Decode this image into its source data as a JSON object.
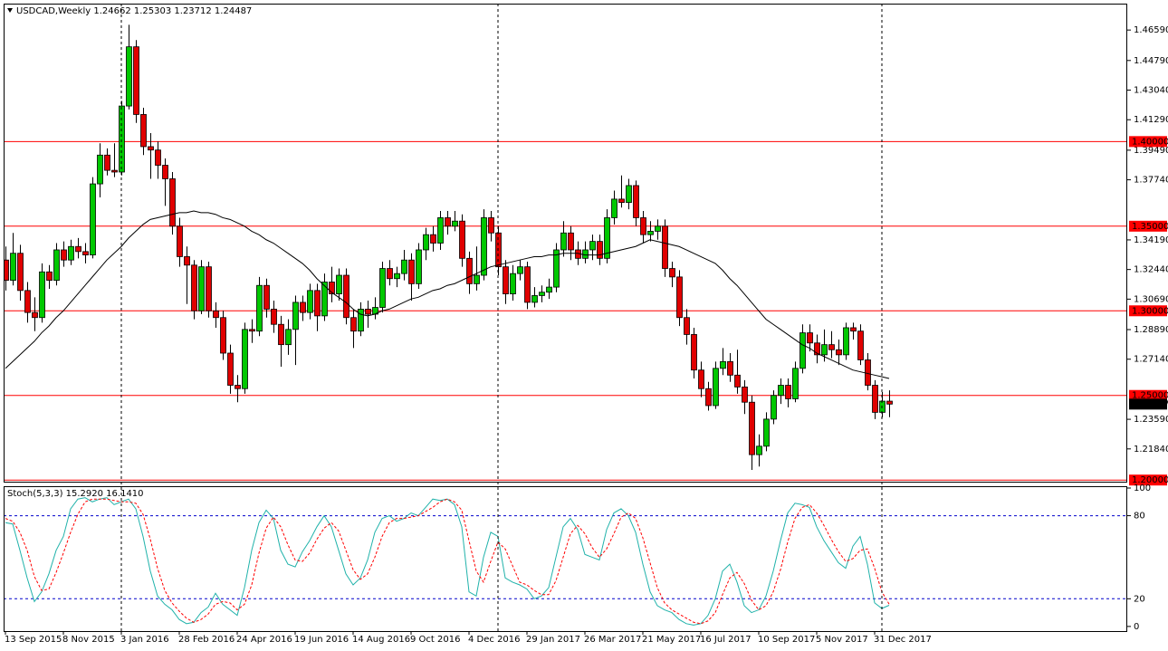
{
  "chart_data": [
    {
      "type": "candlestick",
      "title": "USDCAD,Weekly  1.24662 1.25303 1.23712 1.24487",
      "categories": [
        "13 Sep 2015",
        null,
        null,
        null,
        null,
        null,
        null,
        null,
        "8 Nov 2015",
        null,
        null,
        null,
        null,
        null,
        null,
        null,
        "3 Jan 2016",
        null,
        null,
        null,
        null,
        null,
        null,
        null,
        "28 Feb 2016",
        null,
        null,
        null,
        null,
        null,
        null,
        null,
        "24 Apr 2016",
        null,
        null,
        null,
        null,
        null,
        null,
        null,
        "19 Jun 2016",
        null,
        null,
        null,
        null,
        null,
        null,
        null,
        "14 Aug 2016",
        null,
        null,
        null,
        null,
        null,
        null,
        null,
        "9 Oct 2016",
        null,
        null,
        null,
        null,
        null,
        null,
        null,
        "4 Dec 2016",
        null,
        null,
        null,
        null,
        null,
        null,
        null,
        "29 Jan 2017",
        null,
        null,
        null,
        null,
        null,
        null,
        null,
        "26 Mar 2017",
        null,
        null,
        null,
        null,
        null,
        null,
        null,
        "21 May 2017",
        null,
        null,
        null,
        null,
        null,
        null,
        null,
        "16 Jul 2017",
        null,
        null,
        null,
        null,
        null,
        null,
        null,
        "10 Sep 2017",
        null,
        null,
        null,
        null,
        null,
        null,
        null,
        "5 Nov 2017",
        null,
        null,
        null,
        null,
        null,
        null,
        null,
        "31 Dec 2017",
        null,
        null
      ],
      "open": [
        1.33,
        1.318,
        1.334,
        1.312,
        1.299,
        1.296,
        1.323,
        1.318,
        1.336,
        1.33,
        1.338,
        1.335,
        1.333,
        1.375,
        1.392,
        1.383,
        1.382,
        1.421,
        1.456,
        1.416,
        1.397,
        1.395,
        1.386,
        1.378,
        1.35,
        1.332,
        1.327,
        1.3,
        1.326,
        1.3,
        1.296,
        1.275,
        1.256,
        1.254,
        1.289,
        1.288,
        1.315,
        1.301,
        1.292,
        1.28,
        1.289,
        1.305,
        1.299,
        1.312,
        1.297,
        1.317,
        1.31,
        1.321,
        1.296,
        1.288,
        1.301,
        1.298,
        1.302,
        1.325,
        1.319,
        1.322,
        1.33,
        1.316,
        1.336,
        1.345,
        1.34,
        1.355,
        1.35,
        1.353,
        1.331,
        1.316,
        1.321,
        1.355,
        1.346,
        1.326,
        1.31,
        1.322,
        1.326,
        1.305,
        1.309,
        1.311,
        1.314,
        1.336,
        1.346,
        1.336,
        1.331,
        1.336,
        1.341,
        1.331,
        1.355,
        1.366,
        1.364,
        1.374,
        1.355,
        1.345,
        1.347,
        1.35,
        1.325,
        1.32,
        1.296,
        1.286,
        1.265,
        1.254,
        1.244,
        1.266,
        1.27,
        1.262,
        1.255,
        1.246,
        1.215,
        1.22,
        1.236,
        1.25,
        1.256,
        1.248,
        1.266,
        1.287,
        1.281,
        1.274,
        1.28,
        1.277,
        1.274,
        1.29,
        1.288,
        1.271,
        1.256,
        1.24,
        1.24662
      ],
      "high": [
        1.338,
        1.346,
        1.339,
        1.317,
        1.308,
        1.328,
        1.327,
        1.34,
        1.341,
        1.342,
        1.343,
        1.34,
        1.379,
        1.399,
        1.396,
        1.399,
        1.424,
        1.469,
        1.46,
        1.42,
        1.405,
        1.4,
        1.39,
        1.382,
        1.355,
        1.338,
        1.33,
        1.33,
        1.329,
        1.305,
        1.3,
        1.28,
        1.262,
        1.293,
        1.295,
        1.32,
        1.319,
        1.306,
        1.297,
        1.295,
        1.309,
        1.309,
        1.316,
        1.316,
        1.322,
        1.326,
        1.325,
        1.325,
        1.301,
        1.305,
        1.306,
        1.308,
        1.329,
        1.33,
        1.326,
        1.336,
        1.334,
        1.34,
        1.349,
        1.35,
        1.359,
        1.359,
        1.359,
        1.357,
        1.335,
        1.338,
        1.36,
        1.359,
        1.35,
        1.33,
        1.327,
        1.33,
        1.329,
        1.314,
        1.315,
        1.319,
        1.34,
        1.353,
        1.35,
        1.341,
        1.341,
        1.345,
        1.345,
        1.36,
        1.371,
        1.38,
        1.378,
        1.377,
        1.359,
        1.353,
        1.354,
        1.354,
        1.329,
        1.324,
        1.301,
        1.29,
        1.27,
        1.258,
        1.27,
        1.278,
        1.275,
        1.277,
        1.259,
        1.25,
        1.227,
        1.24,
        1.253,
        1.26,
        1.26,
        1.27,
        1.292,
        1.292,
        1.286,
        1.289,
        1.288,
        1.283,
        1.293,
        1.293,
        1.292,
        1.275,
        1.259,
        1.252,
        1.25303
      ],
      "low": [
        1.312,
        1.315,
        1.306,
        1.293,
        1.288,
        1.293,
        1.313,
        1.315,
        1.326,
        1.327,
        1.331,
        1.328,
        1.331,
        1.367,
        1.38,
        1.379,
        1.38,
        1.419,
        1.411,
        1.392,
        1.378,
        1.378,
        1.362,
        1.345,
        1.326,
        1.304,
        1.295,
        1.298,
        1.296,
        1.29,
        1.271,
        1.251,
        1.246,
        1.251,
        1.281,
        1.285,
        1.296,
        1.287,
        1.267,
        1.274,
        1.268,
        1.294,
        1.295,
        1.288,
        1.294,
        1.305,
        1.306,
        1.292,
        1.278,
        1.285,
        1.29,
        1.295,
        1.299,
        1.315,
        1.314,
        1.318,
        1.306,
        1.313,
        1.33,
        1.335,
        1.336,
        1.345,
        1.347,
        1.326,
        1.31,
        1.312,
        1.318,
        1.341,
        1.321,
        1.304,
        1.306,
        1.318,
        1.301,
        1.302,
        1.305,
        1.307,
        1.311,
        1.332,
        1.33,
        1.327,
        1.328,
        1.33,
        1.327,
        1.328,
        1.351,
        1.361,
        1.36,
        1.35,
        1.34,
        1.341,
        1.342,
        1.32,
        1.314,
        1.291,
        1.28,
        1.26,
        1.249,
        1.241,
        1.242,
        1.262,
        1.258,
        1.251,
        1.239,
        1.206,
        1.208,
        1.217,
        1.233,
        1.245,
        1.243,
        1.246,
        1.263,
        1.276,
        1.269,
        1.27,
        1.272,
        1.268,
        1.271,
        1.283,
        1.268,
        1.253,
        1.236,
        1.237,
        1.23712
      ],
      "close": [
        1.318,
        1.334,
        1.312,
        1.299,
        1.296,
        1.323,
        1.318,
        1.336,
        1.33,
        1.338,
        1.335,
        1.333,
        1.375,
        1.392,
        1.383,
        1.382,
        1.421,
        1.456,
        1.416,
        1.397,
        1.395,
        1.386,
        1.378,
        1.35,
        1.332,
        1.327,
        1.3,
        1.326,
        1.3,
        1.296,
        1.275,
        1.256,
        1.254,
        1.289,
        1.288,
        1.315,
        1.301,
        1.292,
        1.28,
        1.289,
        1.305,
        1.299,
        1.312,
        1.297,
        1.317,
        1.31,
        1.321,
        1.296,
        1.288,
        1.301,
        1.298,
        1.302,
        1.325,
        1.319,
        1.322,
        1.33,
        1.316,
        1.336,
        1.345,
        1.34,
        1.355,
        1.35,
        1.353,
        1.331,
        1.316,
        1.321,
        1.355,
        1.346,
        1.326,
        1.31,
        1.322,
        1.326,
        1.305,
        1.309,
        1.311,
        1.314,
        1.336,
        1.346,
        1.336,
        1.331,
        1.336,
        1.341,
        1.331,
        1.355,
        1.366,
        1.364,
        1.374,
        1.355,
        1.345,
        1.347,
        1.35,
        1.325,
        1.32,
        1.296,
        1.286,
        1.265,
        1.254,
        1.244,
        1.266,
        1.27,
        1.262,
        1.255,
        1.246,
        1.215,
        1.22,
        1.236,
        1.25,
        1.256,
        1.248,
        1.266,
        1.287,
        1.281,
        1.274,
        1.28,
        1.277,
        1.274,
        1.29,
        1.288,
        1.271,
        1.256,
        1.24,
        1.24662,
        1.24487
      ],
      "up_color": "#00c800",
      "down_color": "#e00000",
      "overlay": {
        "color": "#000000",
        "values": [
          1.266,
          1.27,
          1.274,
          1.278,
          1.282,
          1.287,
          1.291,
          1.296,
          1.3,
          1.305,
          1.31,
          1.315,
          1.32,
          1.325,
          1.33,
          1.334,
          1.338,
          1.343,
          1.347,
          1.351,
          1.354,
          1.355,
          1.356,
          1.357,
          1.358,
          1.358,
          1.359,
          1.358,
          1.358,
          1.357,
          1.355,
          1.354,
          1.352,
          1.35,
          1.347,
          1.345,
          1.342,
          1.34,
          1.337,
          1.334,
          1.331,
          1.328,
          1.324,
          1.319,
          1.315,
          1.311,
          1.308,
          1.305,
          1.301,
          1.298,
          1.297,
          1.298,
          1.3,
          1.301,
          1.303,
          1.305,
          1.307,
          1.308,
          1.31,
          1.312,
          1.313,
          1.315,
          1.316,
          1.318,
          1.32,
          1.322,
          1.324,
          1.326,
          1.327,
          1.328,
          1.329,
          1.33,
          1.331,
          1.332,
          1.332,
          1.333,
          1.333,
          1.334,
          1.334,
          1.334,
          1.333,
          1.333,
          1.333,
          1.334,
          1.335,
          1.336,
          1.337,
          1.338,
          1.34,
          1.342,
          1.341,
          1.34,
          1.339,
          1.338,
          1.336,
          1.334,
          1.332,
          1.33,
          1.328,
          1.324,
          1.319,
          1.315,
          1.31,
          1.305,
          1.3,
          1.295,
          1.292,
          1.289,
          1.286,
          1.283,
          1.28,
          1.278,
          1.275,
          1.273,
          1.271,
          1.269,
          1.267,
          1.265,
          1.264,
          1.263,
          1.262,
          1.261,
          1.26
        ]
      },
      "levels": [
        {
          "value": 1.4,
          "label": "1.40000"
        },
        {
          "value": 1.35,
          "label": "1.35000"
        },
        {
          "value": 1.3,
          "label": "1.30000"
        },
        {
          "value": 1.25,
          "label": "1.25000"
        },
        {
          "value": 1.2,
          "label": "1.20000"
        }
      ],
      "level_color": "#ff0000",
      "last_price": {
        "value": 1.24487,
        "label": "1.24487"
      },
      "ylim": [
        1.1985,
        1.4815
      ],
      "yticks": [
        {
          "value": 1.4659,
          "label": "1.46590"
        },
        {
          "value": 1.4479,
          "label": "1.44790"
        },
        {
          "value": 1.4304,
          "label": "1.43040"
        },
        {
          "value": 1.4129,
          "label": "1.41290"
        },
        {
          "value": 1.3949,
          "label": "1.39490"
        },
        {
          "value": 1.3774,
          "label": "1.37740"
        },
        {
          "value": 1.3419,
          "label": "1.34190"
        },
        {
          "value": 1.3244,
          "label": "1.32440"
        },
        {
          "value": 1.3069,
          "label": "1.30690"
        },
        {
          "value": 1.2889,
          "label": "1.28890"
        },
        {
          "value": 1.2714,
          "label": "1.27140"
        },
        {
          "value": 1.2359,
          "label": "1.23590"
        },
        {
          "value": 1.2184,
          "label": "1.21840"
        }
      ]
    },
    {
      "type": "line",
      "title": "Stoch(5,3,3) 15.2920 16.1410",
      "series": [
        {
          "color": "#20b2aa",
          "values": [
            75,
            74,
            55,
            35,
            18,
            25,
            38,
            55,
            65,
            85,
            92,
            93,
            90,
            92,
            93,
            88,
            90,
            92,
            85,
            65,
            40,
            22,
            16,
            12,
            5,
            2,
            3,
            10,
            14,
            24,
            16,
            12,
            8,
            28,
            55,
            75,
            84,
            78,
            55,
            45,
            43,
            54,
            62,
            72,
            80,
            72,
            55,
            38,
            30,
            35,
            48,
            68,
            78,
            80,
            76,
            78,
            82,
            80,
            86,
            92,
            91,
            92,
            88,
            72,
            25,
            22,
            50,
            68,
            65,
            35,
            32,
            30,
            27,
            20,
            22,
            28,
            50,
            72,
            78,
            70,
            52,
            50,
            48,
            70,
            82,
            85,
            80,
            68,
            45,
            25,
            15,
            12,
            10,
            5,
            2,
            1,
            2,
            8,
            20,
            40,
            45,
            32,
            15,
            10,
            12,
            22,
            40,
            62,
            82,
            89,
            88,
            86,
            72,
            62,
            54,
            46,
            42,
            58,
            65,
            45,
            17,
            13,
            15.292
          ]
        },
        {
          "color": "#ff0000",
          "dash": true,
          "values": [
            78,
            76,
            68,
            55,
            36,
            26,
            27,
            39,
            53,
            68,
            81,
            90,
            92,
            92,
            92,
            91,
            90,
            90,
            89,
            81,
            63,
            42,
            26,
            17,
            11,
            6,
            3,
            5,
            9,
            16,
            18,
            17,
            12,
            16,
            30,
            53,
            71,
            79,
            72,
            59,
            48,
            47,
            53,
            63,
            71,
            75,
            69,
            55,
            41,
            34,
            38,
            50,
            65,
            75,
            78,
            78,
            79,
            80,
            83,
            86,
            90,
            92,
            90,
            84,
            62,
            40,
            32,
            47,
            61,
            56,
            44,
            32,
            30,
            26,
            23,
            23,
            33,
            50,
            67,
            73,
            67,
            57,
            50,
            56,
            67,
            79,
            82,
            78,
            64,
            46,
            28,
            17,
            12,
            9,
            6,
            3,
            2,
            4,
            10,
            23,
            35,
            39,
            31,
            19,
            12,
            15,
            25,
            41,
            61,
            78,
            86,
            88,
            82,
            73,
            63,
            54,
            47,
            49,
            55,
            56,
            42,
            25,
            16.141
          ]
        }
      ],
      "levels": [
        80,
        20
      ],
      "level_color": "#0000cc",
      "ylim": [
        -4,
        101.3
      ],
      "yticks": [
        100,
        80,
        20,
        0
      ]
    }
  ]
}
